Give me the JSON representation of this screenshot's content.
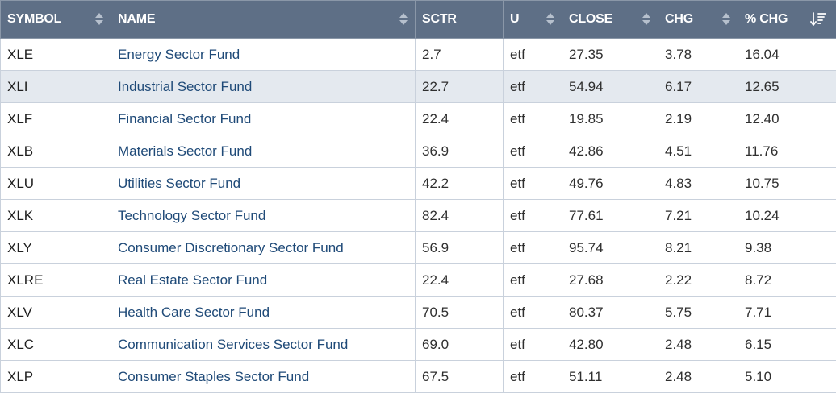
{
  "columns": [
    {
      "label": "SYMBOL",
      "sort": "none"
    },
    {
      "label": "NAME",
      "sort": "none"
    },
    {
      "label": "SCTR",
      "sort": "none"
    },
    {
      "label": "U",
      "sort": "none"
    },
    {
      "label": "CLOSE",
      "sort": "none"
    },
    {
      "label": "CHG",
      "sort": "none"
    },
    {
      "label": "% CHG",
      "sort": "descending"
    }
  ],
  "rows": [
    {
      "symbol": "XLE",
      "name": "Energy Sector Fund",
      "sctr": "2.7",
      "u": "etf",
      "close": "27.35",
      "chg": "3.78",
      "pct_chg": "16.04"
    },
    {
      "symbol": "XLI",
      "name": "Industrial Sector Fund",
      "sctr": "22.7",
      "u": "etf",
      "close": "54.94",
      "chg": "6.17",
      "pct_chg": "12.65"
    },
    {
      "symbol": "XLF",
      "name": "Financial Sector Fund",
      "sctr": "22.4",
      "u": "etf",
      "close": "19.85",
      "chg": "2.19",
      "pct_chg": "12.40"
    },
    {
      "symbol": "XLB",
      "name": "Materials Sector Fund",
      "sctr": "36.9",
      "u": "etf",
      "close": "42.86",
      "chg": "4.51",
      "pct_chg": "11.76"
    },
    {
      "symbol": "XLU",
      "name": "Utilities Sector Fund",
      "sctr": "42.2",
      "u": "etf",
      "close": "49.76",
      "chg": "4.83",
      "pct_chg": "10.75"
    },
    {
      "symbol": "XLK",
      "name": "Technology Sector Fund",
      "sctr": "82.4",
      "u": "etf",
      "close": "77.61",
      "chg": "7.21",
      "pct_chg": "10.24"
    },
    {
      "symbol": "XLY",
      "name": "Consumer Discretionary Sector Fund",
      "sctr": "56.9",
      "u": "etf",
      "close": "95.74",
      "chg": "8.21",
      "pct_chg": "9.38"
    },
    {
      "symbol": "XLRE",
      "name": "Real Estate Sector Fund",
      "sctr": "22.4",
      "u": "etf",
      "close": "27.68",
      "chg": "2.22",
      "pct_chg": "8.72"
    },
    {
      "symbol": "XLV",
      "name": "Health Care Sector Fund",
      "sctr": "70.5",
      "u": "etf",
      "close": "80.37",
      "chg": "5.75",
      "pct_chg": "7.71"
    },
    {
      "symbol": "XLC",
      "name": "Communication Services Sector Fund",
      "sctr": "69.0",
      "u": "etf",
      "close": "42.80",
      "chg": "2.48",
      "pct_chg": "6.15"
    },
    {
      "symbol": "XLP",
      "name": "Consumer Staples Sector Fund",
      "sctr": "67.5",
      "u": "etf",
      "close": "51.11",
      "chg": "2.48",
      "pct_chg": "5.10"
    }
  ],
  "colors": {
    "header_bg": "#5e6f86",
    "link": "#1f4a78",
    "row_shaded": "#e4e9ef"
  },
  "icons": {
    "sortable": "sort-updown-icon",
    "sorted_desc": "sort-descending-icon"
  }
}
